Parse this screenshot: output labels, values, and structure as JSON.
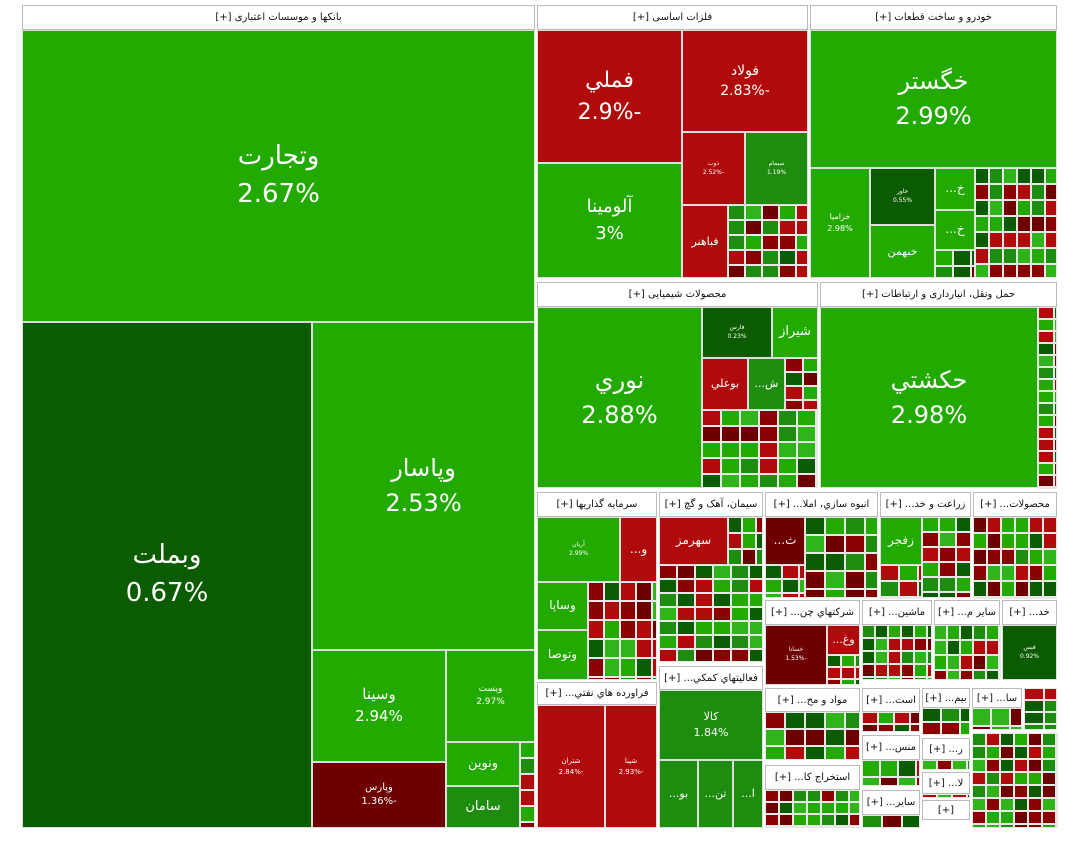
{
  "sectors": [
    {
      "title": "بانکها و موسسات اعتباری [+]",
      "tiles": [
        {
          "name": "وتجارت",
          "change": "2.67%"
        },
        {
          "name": "وبملت",
          "change": "0.67%"
        },
        {
          "name": "وپاسار",
          "change": "2.53%"
        },
        {
          "name": "وسينا",
          "change": "2.94%"
        },
        {
          "name": "ويست",
          "change": "2.97%"
        },
        {
          "name": "وپارس",
          "change": "-1.36%"
        },
        {
          "name": "ونوين"
        },
        {
          "name": "سامان"
        }
      ]
    },
    {
      "title": "فلزات اساسی [+]",
      "tiles": [
        {
          "name": "فملي",
          "change": "-2.9%"
        },
        {
          "name": "فولاد",
          "change": "-2.83%"
        },
        {
          "name": "آلومينا",
          "change": "3%"
        },
        {
          "name": "ذوب",
          "change": "-2.52%"
        },
        {
          "name": "سيمام",
          "change": "1.19%"
        },
        {
          "name": "فباهنر"
        }
      ]
    },
    {
      "title": "خودرو و ساخت قطعات [+]",
      "tiles": [
        {
          "name": "خگستر",
          "change": "2.99%"
        },
        {
          "name": "خزامیا",
          "change": "2.98%"
        },
        {
          "name": "خاور",
          "change": "0.55%"
        },
        {
          "name": "خ..."
        },
        {
          "name": "خ..."
        },
        {
          "name": "خبهمن"
        }
      ]
    },
    {
      "title": "محصولات شیمیایی [+]",
      "tiles": [
        {
          "name": "نوري",
          "change": "2.88%"
        },
        {
          "name": "فارس",
          "change": "0.23%"
        },
        {
          "name": "شيراز"
        },
        {
          "name": "ش..."
        },
        {
          "name": "بوعلي"
        }
      ]
    },
    {
      "title": "حمل ونقل، انبارداری و ارتباطات [+]",
      "tiles": [
        {
          "name": "حكشتي",
          "change": "2.98%"
        }
      ]
    },
    {
      "title": "سرمایه گذاریها [+]",
      "tiles": [
        {
          "name": "آريان",
          "change": "2.99%"
        },
        {
          "name": "و..."
        },
        {
          "name": "وساپا"
        },
        {
          "name": "وتوصا"
        }
      ]
    },
    {
      "title": "سیمان، آهک و گچ [+]",
      "tiles": [
        {
          "name": "سهرمز"
        }
      ]
    },
    {
      "title": "انبوه سازي، املا... [+]",
      "tiles": [
        {
          "name": "ث..."
        }
      ]
    },
    {
      "title": "زراعت و خد... [+]",
      "tiles": [
        {
          "name": "زفجر"
        }
      ]
    },
    {
      "title": "محصولات... [+]",
      "tiles": []
    },
    {
      "title": "فراورده هاي نفتي... [+]",
      "tiles": [
        {
          "name": "شتران",
          "change": "-2.84%"
        },
        {
          "name": "شپنا",
          "change": "-2.93%"
        }
      ]
    },
    {
      "title": "فعاليتهاي کمکي... [+]",
      "tiles": [
        {
          "name": "کالا",
          "change": "1.84%"
        },
        {
          "name": "تن..."
        },
        {
          "name": "بو..."
        },
        {
          "name": "ا..."
        }
      ]
    },
    {
      "title": "شرکتهاي چن... [+]",
      "tiles": [
        {
          "name": "خسانا",
          "change": "-1.53%"
        },
        {
          "name": "وغ..."
        }
      ]
    },
    {
      "title": "ماشين... [+]",
      "tiles": []
    },
    {
      "title": "ساير م... [+]",
      "tiles": []
    },
    {
      "title": "خد... [+]",
      "tiles": [
        {
          "name": "فبس",
          "change": "0.92%"
        }
      ]
    },
    {
      "title": "مواد و مح... [+]",
      "tiles": []
    },
    {
      "title": "استخراج کا... [+]",
      "tiles": []
    },
    {
      "title": "است... [+]",
      "tiles": []
    },
    {
      "title": "منس... [+]",
      "tiles": []
    },
    {
      "title": "ساير... [+]",
      "tiles": []
    },
    {
      "title": "بيم... [+]",
      "tiles": []
    },
    {
      "title": "ر... [+]",
      "tiles": []
    },
    {
      "title": "لا... [+]",
      "tiles": []
    },
    {
      "title": "[+]",
      "tiles": []
    },
    {
      "title": "سا... [+]",
      "tiles": []
    }
  ]
}
